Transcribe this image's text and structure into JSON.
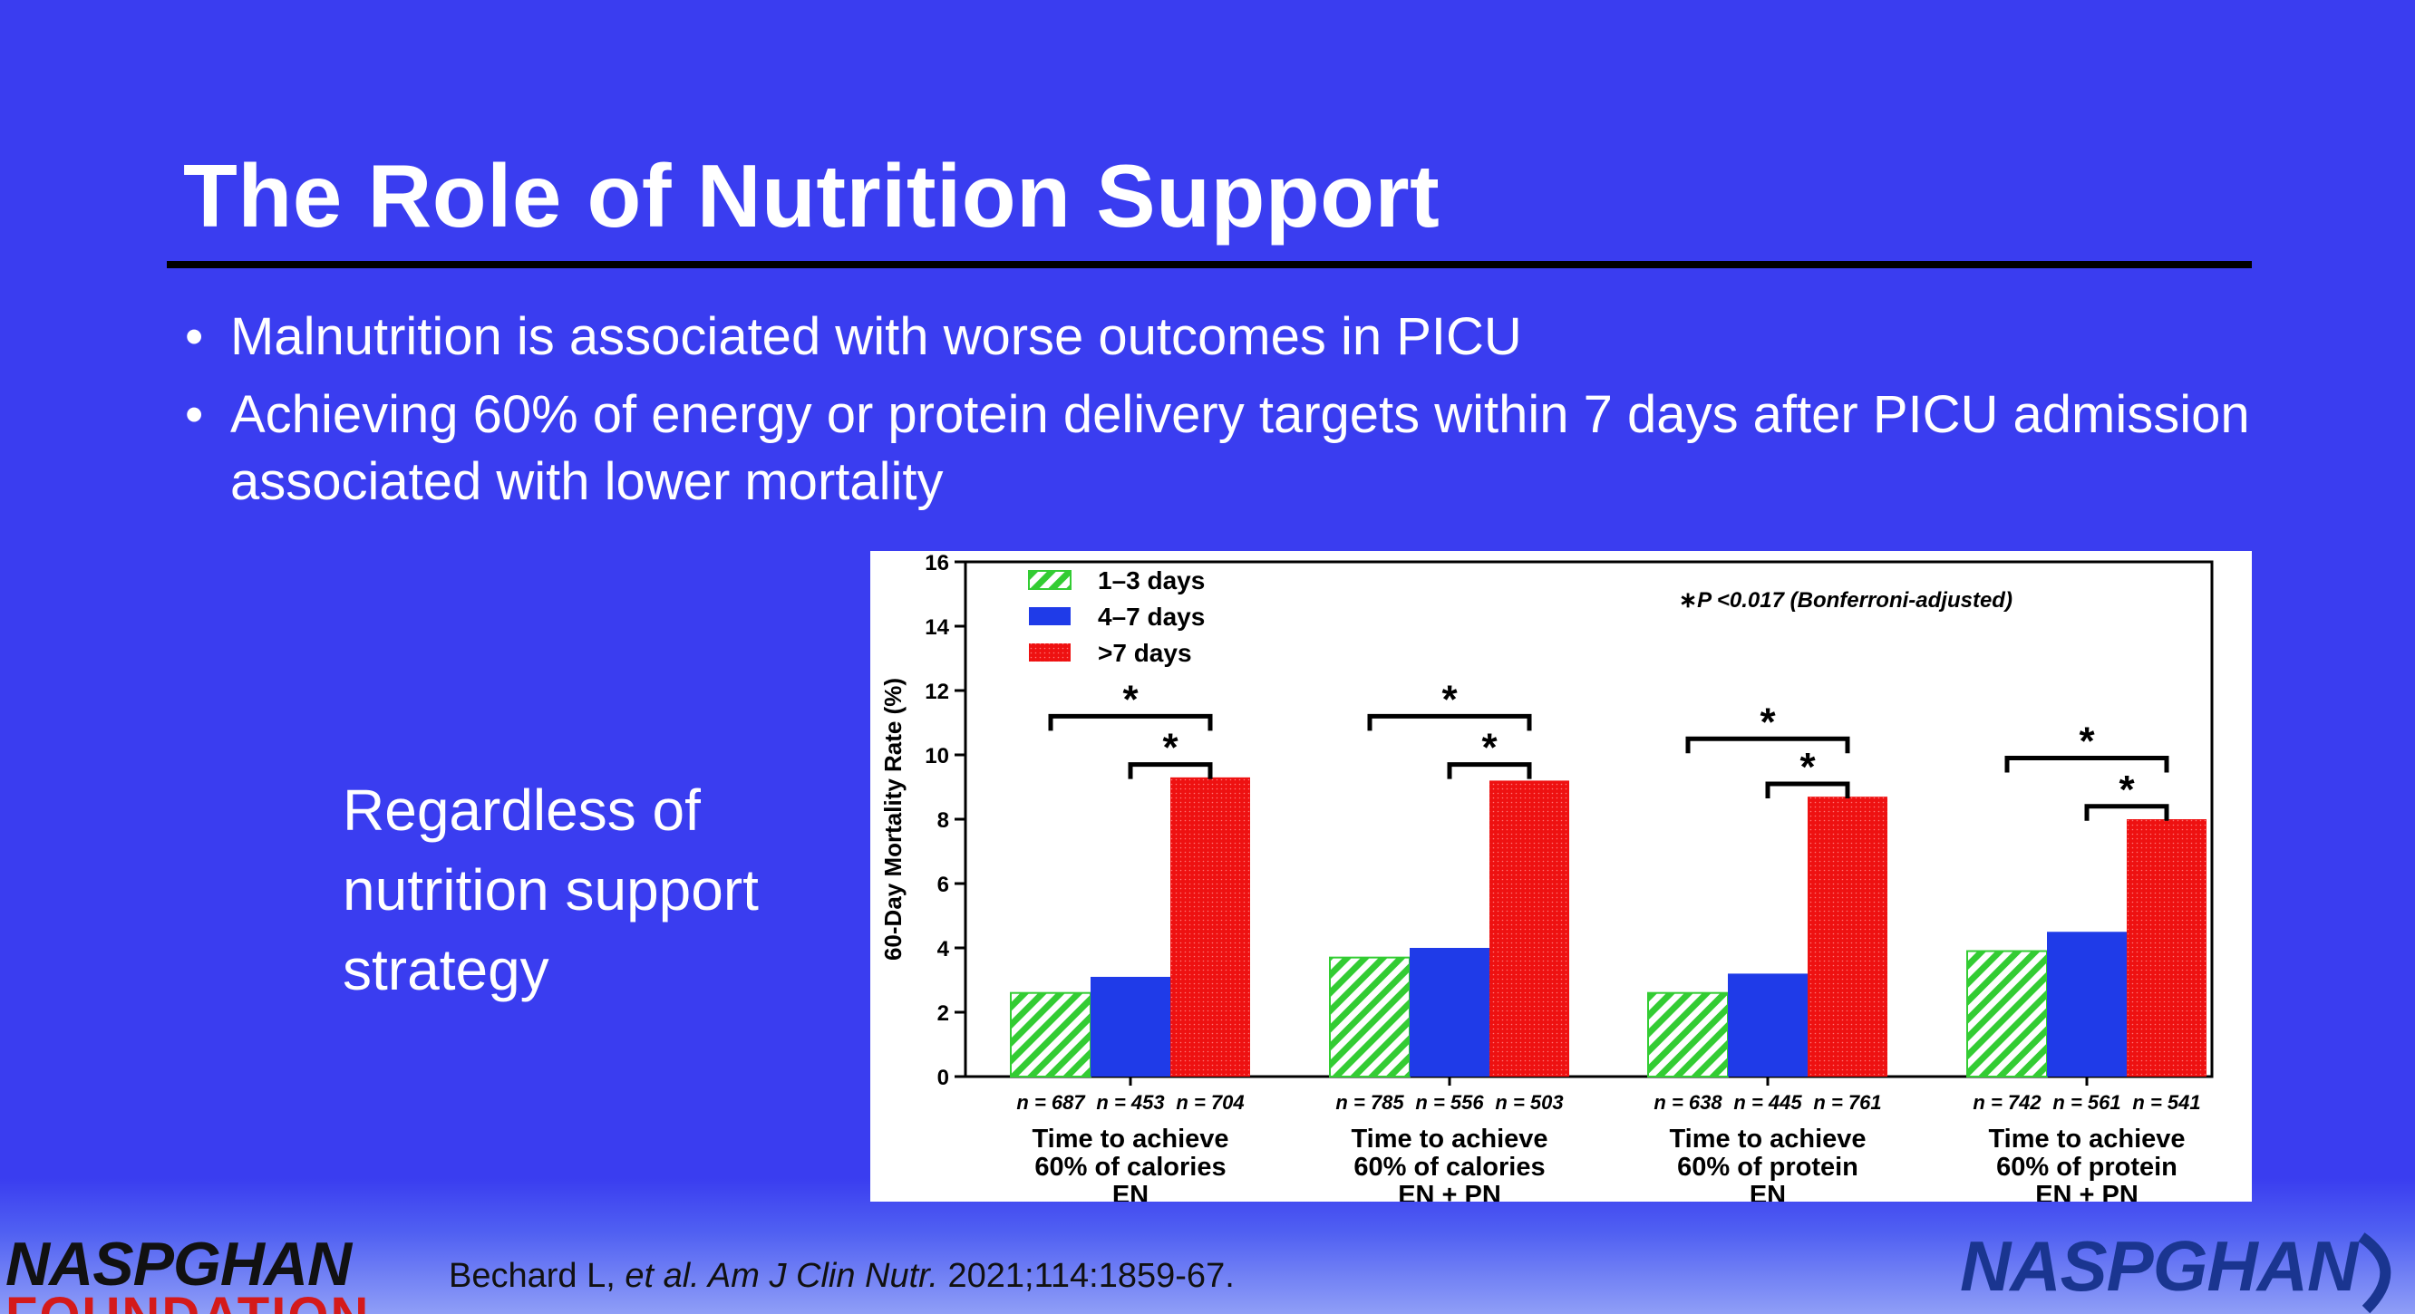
{
  "slide": {
    "title": "The Role of Nutrition Support",
    "bullets": [
      "Malnutrition is associated with worse outcomes in PICU",
      "Achieving 60% of energy or protein delivery targets within 7 days after PICU admission associated with lower mortality"
    ],
    "bullet_glyph": "•",
    "side_note": "Regardless of nutrition support strategy",
    "citation": {
      "authors": "Bechard L, ",
      "etal": "et al.",
      "journal": " Am J Clin Nutr.",
      "rest": " 2021;114:1859-67."
    },
    "footer": {
      "left_logo": "NASPGHAN",
      "left_logo_sub": "FOUNDATION",
      "right_logo": "NASPGHAN"
    },
    "colors": {
      "background": "#3a3df0",
      "green": "#33cc33",
      "blue": "#1f3be8",
      "red": "#ee1111"
    }
  },
  "chart_data": {
    "type": "bar",
    "ylabel": "60-Day Mortality Rate (%)",
    "ylim": [
      0,
      16
    ],
    "yticks": [
      0,
      2,
      4,
      6,
      8,
      10,
      12,
      14,
      16
    ],
    "annotation": "P <0.017 (Bonferroni-adjusted)",
    "annotation_star": "∗",
    "legend_position": "top-left",
    "categories": [
      {
        "lines": [
          "Time to achieve",
          "60% of calories",
          "EN"
        ],
        "n": [
          "n = 687",
          "n = 453",
          "n = 704"
        ]
      },
      {
        "lines": [
          "Time to achieve",
          "60% of calories",
          "EN + PN"
        ],
        "n": [
          "n = 785",
          "n = 556",
          "n = 503"
        ]
      },
      {
        "lines": [
          "Time to achieve",
          "60% of protein",
          "EN"
        ],
        "n": [
          "n = 638",
          "n = 445",
          "n = 761"
        ]
      },
      {
        "lines": [
          "Time to achieve",
          "60% of protein",
          "EN + PN"
        ],
        "n": [
          "n = 742",
          "n = 561",
          "n = 541"
        ]
      }
    ],
    "series": [
      {
        "name": "1–3 days",
        "color": "#33cc33",
        "pattern": "hatch",
        "values": [
          2.6,
          3.7,
          2.6,
          3.9
        ]
      },
      {
        "name": "4–7 days",
        "color": "#1f3be8",
        "pattern": "solid",
        "values": [
          3.1,
          4.0,
          3.2,
          4.5
        ]
      },
      {
        "name": ">7 days",
        "color": "#ee1111",
        "pattern": "dots",
        "values": [
          9.3,
          9.2,
          8.7,
          8.0
        ]
      }
    ],
    "significance": [
      {
        "group": 0,
        "from_series": 0,
        "to_series": 2,
        "y": 11.2,
        "label": "*"
      },
      {
        "group": 0,
        "from_series": 1,
        "to_series": 2,
        "y": 9.7,
        "label": "*"
      },
      {
        "group": 1,
        "from_series": 0,
        "to_series": 2,
        "y": 11.2,
        "label": "*"
      },
      {
        "group": 1,
        "from_series": 1,
        "to_series": 2,
        "y": 9.7,
        "label": "*"
      },
      {
        "group": 2,
        "from_series": 0,
        "to_series": 2,
        "y": 10.5,
        "label": "*"
      },
      {
        "group": 2,
        "from_series": 1,
        "to_series": 2,
        "y": 9.1,
        "label": "*"
      },
      {
        "group": 3,
        "from_series": 0,
        "to_series": 2,
        "y": 9.9,
        "label": "*"
      },
      {
        "group": 3,
        "from_series": 1,
        "to_series": 2,
        "y": 8.4,
        "label": "*"
      }
    ]
  }
}
